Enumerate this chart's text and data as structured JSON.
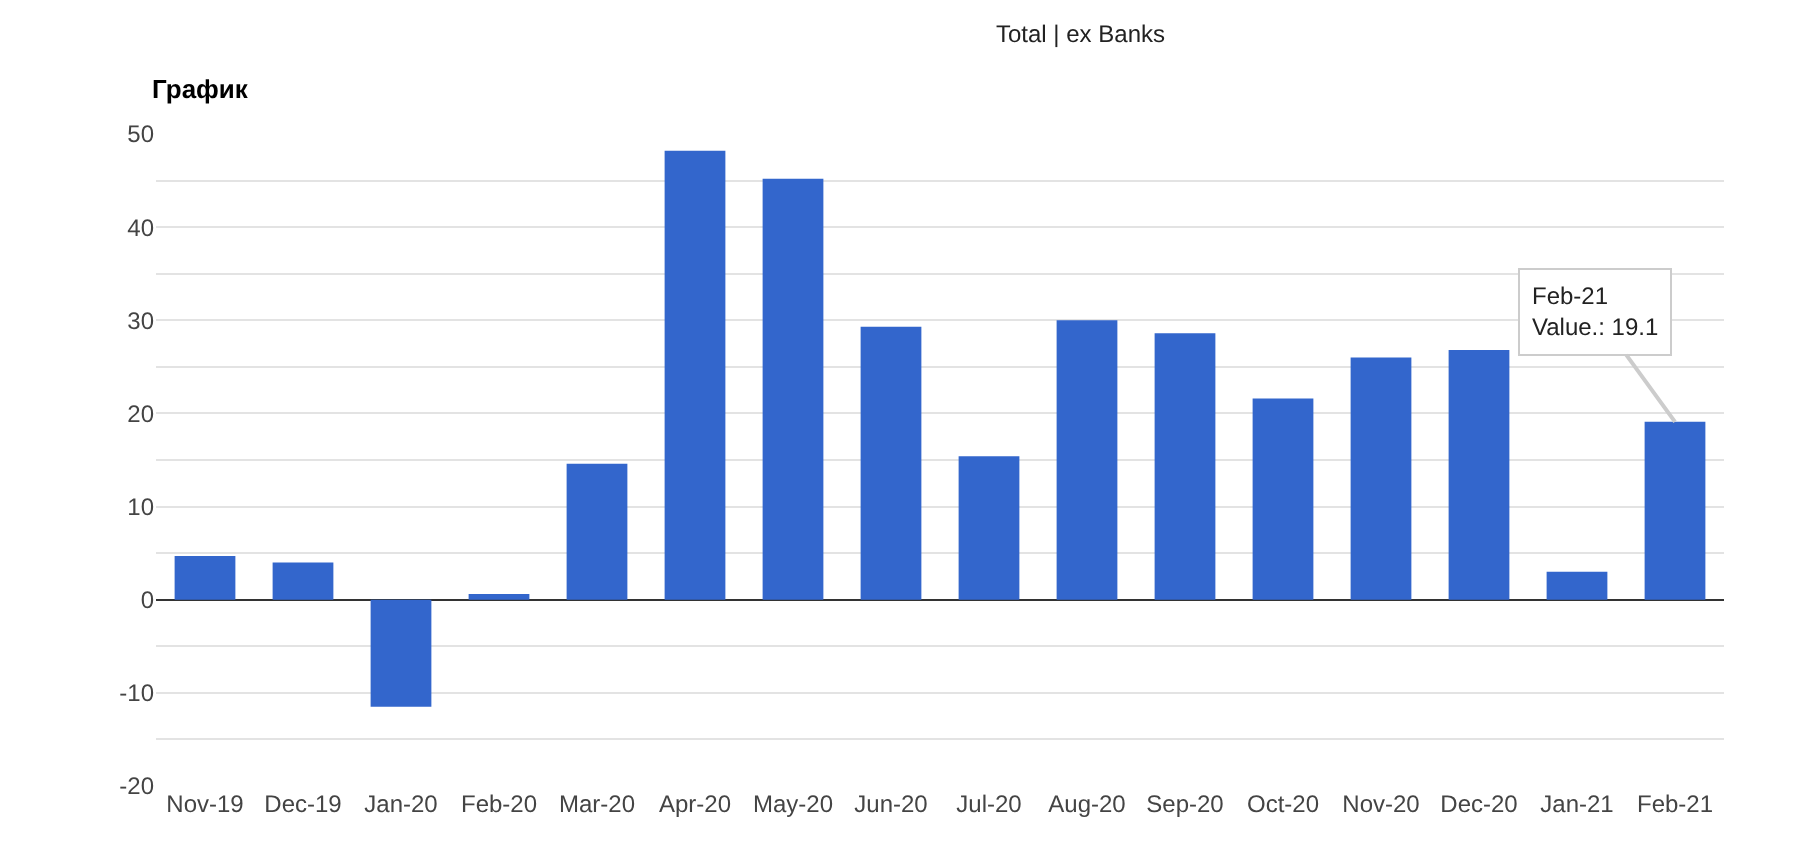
{
  "chart_data": {
    "type": "bar",
    "title": "График",
    "categories": [
      "Nov-19",
      "Dec-19",
      "Jan-20",
      "Feb-20",
      "Mar-20",
      "Apr-20",
      "May-20",
      "Jun-20",
      "Jul-20",
      "Aug-20",
      "Sep-20",
      "Oct-20",
      "Nov-20",
      "Dec-20",
      "Jan-21",
      "Feb-21"
    ],
    "values": [
      4.7,
      4.0,
      -11.5,
      0.6,
      14.6,
      48.2,
      45.2,
      29.3,
      15.4,
      30.0,
      28.6,
      21.6,
      26.0,
      26.8,
      3.0,
      19.1
    ],
    "color": "#3366cc",
    "ylim": [
      -20,
      50
    ],
    "yticks": [
      -20,
      {
        "value": -15,
        "label": null
      },
      -10,
      {
        "value": -5,
        "label": null
      },
      0,
      {
        "value": 5,
        "label": null
      },
      10,
      {
        "value": 15,
        "label": null
      },
      20,
      {
        "value": 25,
        "label": null
      },
      30,
      {
        "value": 35,
        "label": null
      },
      40,
      {
        "value": 45,
        "label": null
      },
      50
    ],
    "grid": true,
    "annotations": [
      "Total | ex Banks",
      {
        "text": "Feb-21\nValue.: 19.1",
        "x": "Feb-21",
        "y": 19.1
      }
    ]
  }
}
